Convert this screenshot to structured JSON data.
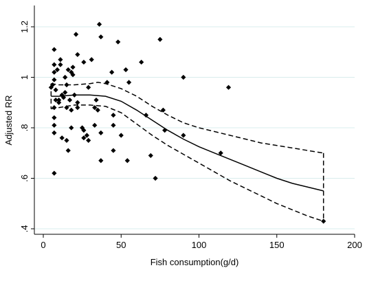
{
  "chart_data": {
    "type": "scatter",
    "xlabel": "Fish consumption(g/d)",
    "ylabel": "Adjusted RR",
    "xlim": [
      0,
      200
    ],
    "ylim": [
      0.38,
      1.24
    ],
    "x_ticks": [
      0,
      50,
      100,
      150,
      200
    ],
    "x_tick_labels": [
      "0",
      "50",
      "100",
      "150",
      "200"
    ],
    "y_ticks": [
      0.4,
      0.6,
      0.8,
      1.0,
      1.2
    ],
    "y_tick_labels": [
      ".4",
      ".6",
      ".8",
      "1",
      "1.2"
    ],
    "grid": "horizontal",
    "points": [
      {
        "x": 5,
        "y": 0.96
      },
      {
        "x": 6,
        "y": 0.97
      },
      {
        "x": 7,
        "y": 1.05
      },
      {
        "x": 7,
        "y": 1.02
      },
      {
        "x": 7,
        "y": 0.99
      },
      {
        "x": 7,
        "y": 0.88
      },
      {
        "x": 7,
        "y": 0.84
      },
      {
        "x": 7,
        "y": 0.81
      },
      {
        "x": 7,
        "y": 0.78
      },
      {
        "x": 7,
        "y": 0.62
      },
      {
        "x": 7,
        "y": 1.11
      },
      {
        "x": 8,
        "y": 0.91
      },
      {
        "x": 8,
        "y": 0.95
      },
      {
        "x": 9,
        "y": 1.03
      },
      {
        "x": 10,
        "y": 0.9
      },
      {
        "x": 10,
        "y": 0.91
      },
      {
        "x": 11,
        "y": 1.05
      },
      {
        "x": 11,
        "y": 1.07
      },
      {
        "x": 12,
        "y": 0.93
      },
      {
        "x": 12,
        "y": 0.76
      },
      {
        "x": 13,
        "y": 0.92
      },
      {
        "x": 14,
        "y": 1.0
      },
      {
        "x": 14,
        "y": 0.94
      },
      {
        "x": 15,
        "y": 0.97
      },
      {
        "x": 15,
        "y": 0.88
      },
      {
        "x": 15,
        "y": 0.75
      },
      {
        "x": 16,
        "y": 1.03
      },
      {
        "x": 16,
        "y": 0.71
      },
      {
        "x": 17,
        "y": 0.91
      },
      {
        "x": 18,
        "y": 1.02
      },
      {
        "x": 18,
        "y": 0.87
      },
      {
        "x": 18,
        "y": 0.8
      },
      {
        "x": 19,
        "y": 1.04
      },
      {
        "x": 19,
        "y": 1.01
      },
      {
        "x": 20,
        "y": 0.93
      },
      {
        "x": 21,
        "y": 1.17
      },
      {
        "x": 22,
        "y": 1.09
      },
      {
        "x": 22,
        "y": 0.9
      },
      {
        "x": 22,
        "y": 0.88
      },
      {
        "x": 25,
        "y": 0.8
      },
      {
        "x": 26,
        "y": 0.79
      },
      {
        "x": 26,
        "y": 0.76
      },
      {
        "x": 26,
        "y": 1.06
      },
      {
        "x": 28,
        "y": 0.77
      },
      {
        "x": 29,
        "y": 0.75
      },
      {
        "x": 29,
        "y": 0.96
      },
      {
        "x": 31,
        "y": 1.07
      },
      {
        "x": 33,
        "y": 0.88
      },
      {
        "x": 33,
        "y": 0.81
      },
      {
        "x": 34,
        "y": 0.91
      },
      {
        "x": 35,
        "y": 0.87
      },
      {
        "x": 36,
        "y": 1.21
      },
      {
        "x": 37,
        "y": 1.16
      },
      {
        "x": 37,
        "y": 0.78
      },
      {
        "x": 37,
        "y": 0.67
      },
      {
        "x": 41,
        "y": 0.98
      },
      {
        "x": 44,
        "y": 1.02
      },
      {
        "x": 45,
        "y": 0.85
      },
      {
        "x": 45,
        "y": 0.81
      },
      {
        "x": 45,
        "y": 0.71
      },
      {
        "x": 48,
        "y": 1.14
      },
      {
        "x": 50,
        "y": 0.77
      },
      {
        "x": 53,
        "y": 1.03
      },
      {
        "x": 54,
        "y": 0.67
      },
      {
        "x": 55,
        "y": 0.98
      },
      {
        "x": 63,
        "y": 1.06
      },
      {
        "x": 66,
        "y": 0.85
      },
      {
        "x": 69,
        "y": 0.69
      },
      {
        "x": 72,
        "y": 0.6
      },
      {
        "x": 75,
        "y": 1.15
      },
      {
        "x": 77,
        "y": 0.87
      },
      {
        "x": 78,
        "y": 0.79
      },
      {
        "x": 90,
        "y": 1.0
      },
      {
        "x": 90,
        "y": 0.77
      },
      {
        "x": 114,
        "y": 0.7
      },
      {
        "x": 119,
        "y": 0.96
      },
      {
        "x": 180,
        "y": 0.43
      }
    ],
    "series": [
      {
        "role": "fit",
        "x": [
          5,
          10,
          20,
          30,
          40,
          50,
          60,
          70,
          80,
          90,
          100,
          110,
          120,
          130,
          140,
          150,
          160,
          170,
          180
        ],
        "y": [
          0.925,
          0.925,
          0.93,
          0.93,
          0.925,
          0.905,
          0.87,
          0.83,
          0.79,
          0.755,
          0.725,
          0.7,
          0.675,
          0.65,
          0.625,
          0.6,
          0.58,
          0.565,
          0.55
        ]
      },
      {
        "role": "upper-ci",
        "x": [
          5,
          10,
          20,
          30,
          35,
          40,
          50,
          60,
          70,
          80,
          90,
          100,
          110,
          120,
          130,
          140,
          150,
          160,
          170,
          180
        ],
        "y": [
          0.975,
          0.97,
          0.97,
          0.975,
          0.98,
          0.975,
          0.955,
          0.925,
          0.885,
          0.85,
          0.82,
          0.8,
          0.785,
          0.77,
          0.755,
          0.74,
          0.73,
          0.72,
          0.71,
          0.7
        ]
      },
      {
        "role": "lower-ci",
        "x": [
          5,
          10,
          20,
          30,
          40,
          50,
          60,
          70,
          80,
          90,
          100,
          110,
          120,
          130,
          140,
          150,
          160,
          170,
          180
        ],
        "y": [
          0.875,
          0.88,
          0.89,
          0.89,
          0.885,
          0.86,
          0.815,
          0.77,
          0.73,
          0.695,
          0.66,
          0.625,
          0.59,
          0.56,
          0.53,
          0.5,
          0.475,
          0.45,
          0.43
        ]
      }
    ]
  }
}
